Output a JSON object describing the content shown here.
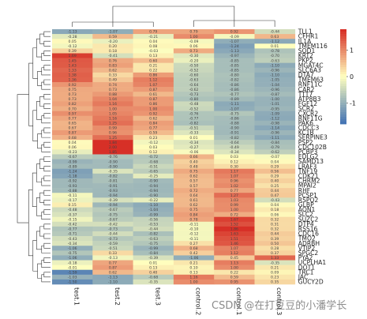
{
  "watermark": "CSDN @在打豆豆的小潘学长",
  "chart_data": {
    "type": "heatmap",
    "columns": [
      "test.1",
      "test.2",
      "test.3",
      "control.2",
      "control.1",
      "control.3"
    ],
    "rows": [
      "TLL1",
      "CFHR1",
      "IL1A",
      "TMEM116",
      "SOD1",
      "KRT2",
      "PKP2",
      "MGAT4C",
      "SLC6A3",
      "DTA7",
      "TMEM63",
      "RNF11C",
      "CAR2",
      "TTT7",
      "ATP8B3",
      "FGF12",
      "SCR2",
      "CXCR2",
      "RNF11G",
      "PAK6",
      "CDCC3",
      "KC1B",
      "SERPINE3",
      "PSP2",
      "CDC102B",
      "PCBP3",
      "EDLG2",
      "SAMD13",
      "LRAF3",
      "TNF19",
      "CDK21",
      "CHRM2",
      "MPAI2",
      "RHF",
      "PCSP1",
      "RSPO2",
      "GLBP",
      "AQN1",
      "SLC2",
      "SUZC2",
      "DTP4",
      "RSS16",
      "CDC16",
      "TMO2",
      "ADRBH",
      "VTIP2",
      "SPGC2",
      "PYA2",
      "UCPLHA1",
      "DOT1",
      "TRC1",
      "JAC",
      "GUCY2D"
    ],
    "values": [
      [
        -1.13,
        -1.07,
        0.79,
        0.79,
        0.92,
        -0.44
      ],
      [
        -0.28,
        0.59,
        -0.21,
        1.0,
        -0.09,
        0.63
      ],
      [
        0.05,
        -0.2,
        0.04,
        -0.09,
        -1.07,
        -1.12
      ],
      [
        -0.12,
        0.2,
        0.08,
        0.06,
        -1.24,
        0.01
      ],
      [
        0.39,
        0.18,
        -0.03,
        0.73,
        -1.13,
        -0.78
      ],
      [
        1.69,
        -0.41,
        0.13,
        -0.3,
        -0.97,
        -0.7
      ],
      [
        1.45,
        0.76,
        0.6,
        -0.2,
        -0.85,
        -0.63
      ],
      [
        1.43,
        0.83,
        0.21,
        -0.5,
        -0.85,
        -1.1
      ],
      [
        1.33,
        0.62,
        0.22,
        -0.52,
        -0.85,
        -0.96
      ],
      [
        1.38,
        0.33,
        0.86,
        -0.6,
        -0.8,
        -1.1
      ],
      [
        1.36,
        0.49,
        1.12,
        -0.63,
        -0.82,
        -1.05
      ],
      [
        0.92,
        0.74,
        1.07,
        -0.64,
        -0.86,
        -1.04
      ],
      [
        0.75,
        0.73,
        0.87,
        -0.62,
        -0.86,
        -0.96
      ],
      [
        0.73,
        0.88,
        0.61,
        -0.73,
        -0.77,
        -0.87
      ],
      [
        0.73,
        1.04,
        0.87,
        -0.8,
        -0.89,
        -1.0
      ],
      [
        0.82,
        1.16,
        0.86,
        -0.48,
        -1.11,
        -1.01
      ],
      [
        0.7,
        1.0,
        1.0,
        -0.52,
        -1.07,
        -0.95
      ],
      [
        0.97,
        1.05,
        0.92,
        -0.76,
        -0.75,
        -1.09
      ],
      [
        0.77,
        1.16,
        0.62,
        -0.77,
        -0.86,
        -1.12
      ],
      [
        0.65,
        1.25,
        0.84,
        -0.82,
        -0.88,
        -0.98
      ],
      [
        0.67,
        0.99,
        0.77,
        -0.51,
        -0.9,
        -1.14
      ],
      [
        0.87,
        0.96,
        0.59,
        -0.33,
        -0.91,
        -0.96
      ],
      [
        0.68,
        1.25,
        0.23,
        0.01,
        -0.82,
        -1.11
      ],
      [
        0.04,
        1.84,
        -0.12,
        -0.34,
        -0.64,
        -0.84
      ],
      [
        0.06,
        2.0,
        0.03,
        -0.27,
        -0.49,
        -0.79
      ],
      [
        -0.23,
        1.85,
        0.12,
        -0.06,
        -0.34,
        -0.62
      ],
      [
        -0.67,
        -0.76,
        -0.72,
        0.66,
        0.03,
        -0.07
      ],
      [
        -0.99,
        -0.9,
        -0.68,
        0.4,
        0.12,
        0.04
      ],
      [
        -0.89,
        -0.9,
        -0.51,
        0.48,
        0.3,
        0.29
      ],
      [
        -1.24,
        -0.35,
        -0.65,
        0.75,
        1.17,
        0.56
      ],
      [
        -1.18,
        -0.82,
        -0.25,
        0.62,
        1.07,
        0.29
      ],
      [
        -0.92,
        -0.81,
        -0.9,
        0.57,
        0.96,
        0.4
      ],
      [
        -0.93,
        -0.91,
        -0.94,
        0.57,
        1.02,
        0.25
      ],
      [
        -0.88,
        -0.93,
        -0.94,
        0.72,
        0.77,
        0.44
      ],
      [
        -0.11,
        -0.94,
        -0.9,
        0.64,
        1.27,
        0.47
      ],
      [
        -0.17,
        -0.39,
        -0.22,
        0.61,
        1.03,
        -0.43
      ],
      [
        0.15,
        -0.94,
        -1.1,
        0.62,
        0.99,
        0.04
      ],
      [
        -0.48,
        -0.67,
        -1.04,
        0.75,
        1.0,
        0.18
      ],
      [
        -0.37,
        -0.75,
        -0.99,
        0.84,
        0.72,
        0.06
      ],
      [
        -0.15,
        -0.67,
        -0.56,
        0.78,
        1.67,
        0.32
      ],
      [
        -0.42,
        -0.42,
        -0.53,
        -0.11,
        1.52,
        0.31
      ],
      [
        -0.77,
        -0.73,
        -0.44,
        -0.1,
        1.86,
        0.32
      ],
      [
        -0.71,
        -0.44,
        -0.82,
        -0.12,
        1.63,
        0.44
      ],
      [
        -0.43,
        -0.73,
        -0.63,
        -0.11,
        1.51,
        0.39
      ],
      [
        -0.34,
        -0.59,
        -0.75,
        0.27,
        1.46,
        0.5
      ],
      [
        -1.06,
        -0.51,
        -0.99,
        0.68,
        1.07,
        0.28
      ],
      [
        -0.75,
        0.33,
        -0.84,
        0.42,
        1.12,
        0.37
      ],
      [
        -1.06,
        -0.13,
        -0.39,
        -1.06,
        0.45,
        1.33
      ],
      [
        -0.18,
        0.77,
        0.01,
        0.21,
        1.13,
        -0.35
      ],
      [
        -0.01,
        0.87,
        0.13,
        0.1,
        1.0,
        0.21
      ],
      [
        -1.59,
        0.62,
        0.4,
        0.13,
        0.22,
        0.09
      ],
      [
        -1.03,
        -1.13,
        -0.68,
        1.16,
        0.59,
        0.23
      ],
      [
        -1.5,
        -1.1,
        -0.35,
        1.0,
        0.95,
        0.35
      ]
    ],
    "legend_ticks": [
      1,
      0,
      -1
    ],
    "colors": {
      "low": "#4575b4",
      "mid": "#ffffbf",
      "high": "#d73027"
    },
    "row_dendrogram": true,
    "column_dendrogram": true,
    "grid": false
  }
}
